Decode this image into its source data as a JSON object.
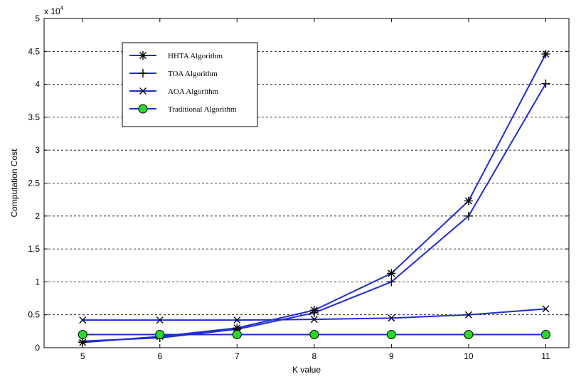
{
  "chart_data": {
    "type": "line",
    "xlabel": "K value",
    "ylabel": "Computation Cost",
    "y_multiplier_label": "x 10",
    "y_multiplier_exponent": "4",
    "x": [
      5,
      6,
      7,
      8,
      9,
      10,
      11
    ],
    "x_ticks": [
      "5",
      "6",
      "7",
      "8",
      "9",
      "10",
      "11"
    ],
    "y_ticks": [
      "0",
      "0.5",
      "1",
      "1.5",
      "2",
      "2.5",
      "3",
      "3.5",
      "4",
      "4.5",
      "5"
    ],
    "xlim": [
      4.5,
      11.3
    ],
    "ylim": [
      0,
      5
    ],
    "grid": "horizontal dashed",
    "legend_position": "upper-left",
    "series": [
      {
        "name": "HHTA Algorithm",
        "marker": "asterisk",
        "color": "#1f2bd6",
        "values": [
          0.08,
          0.17,
          0.3,
          0.57,
          1.13,
          2.23,
          4.46
        ]
      },
      {
        "name": "TOA Algorithm",
        "marker": "plus",
        "color": "#1f2bd6",
        "values": [
          0.1,
          0.15,
          0.28,
          0.53,
          1.0,
          2.0,
          4.01
        ]
      },
      {
        "name": "AOA Algorithm",
        "marker": "x",
        "color": "#1f2bd6",
        "values": [
          0.42,
          0.42,
          0.42,
          0.43,
          0.45,
          0.5,
          0.59
        ]
      },
      {
        "name": "Traditional Algorithm",
        "marker": "circle",
        "color": "#1f2bd6",
        "marker_fill": "#22dd22",
        "values": [
          0.2,
          0.2,
          0.2,
          0.2,
          0.2,
          0.2,
          0.2
        ]
      }
    ]
  }
}
